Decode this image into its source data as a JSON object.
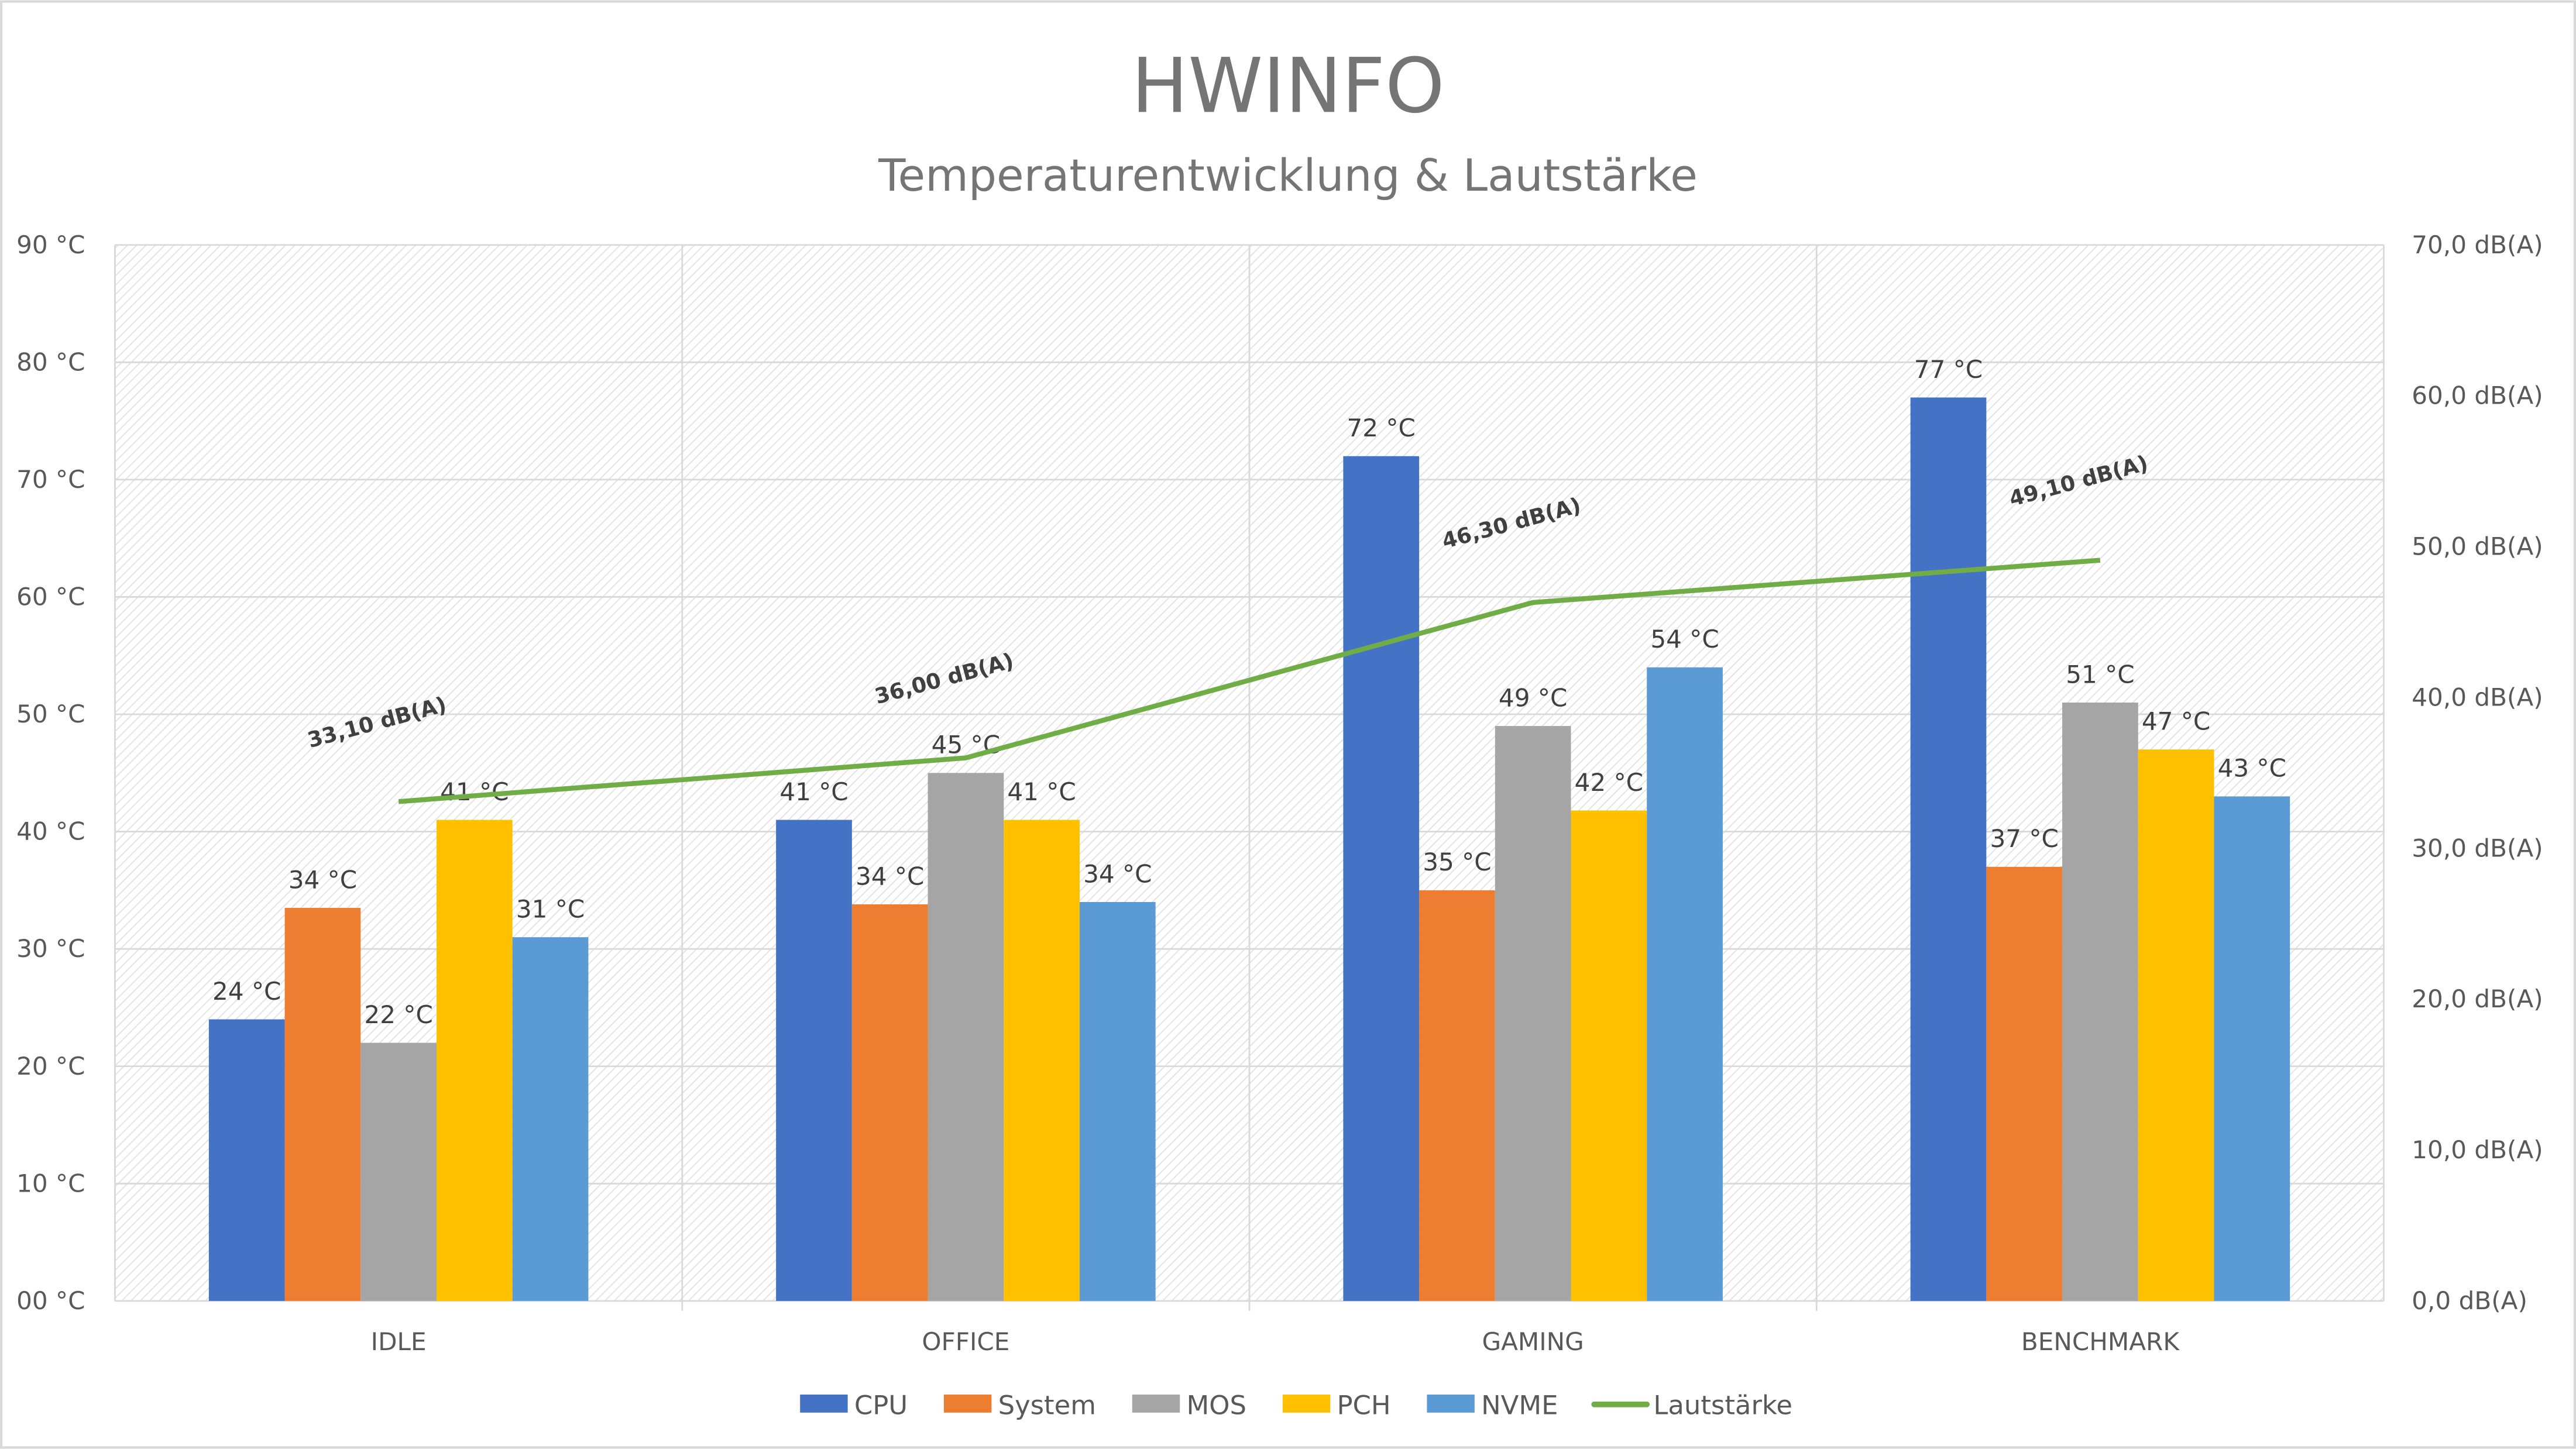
{
  "chart_data": {
    "type": "bar",
    "title": "HWINFO",
    "subtitle": "Temperaturentwicklung & Lautstärke",
    "categories": [
      "IDLE",
      "OFFICE",
      "GAMING",
      "BENCHMARK"
    ],
    "y_left": {
      "ylim": [
        0,
        90
      ],
      "ticks": [
        "00 °C",
        "10 °C",
        "20 °C",
        "30 °C",
        "40 °C",
        "50 °C",
        "60 °C",
        "70 °C",
        "80 °C",
        "90 °C"
      ]
    },
    "y_right": {
      "ylim": [
        0,
        70
      ],
      "ticks": [
        "0,0  dB(A)",
        "10,0  dB(A)",
        "20,0  dB(A)",
        "30,0  dB(A)",
        "40,0  dB(A)",
        "50,0  dB(A)",
        "60,0  dB(A)",
        "70,0  dB(A)"
      ]
    },
    "grid": true,
    "legend_position": "bottom",
    "series": [
      {
        "name": "CPU",
        "color": "#4472c4",
        "values": [
          24,
          41,
          72,
          77
        ],
        "labels": [
          "24 °C",
          "41 °C",
          "72 °C",
          "77 °C"
        ]
      },
      {
        "name": "System",
        "color": "#ed7d31",
        "values": [
          33.5,
          33.8,
          35,
          37
        ],
        "labels": [
          "34 °C",
          "34 °C",
          "35 °C",
          "37 °C"
        ]
      },
      {
        "name": "MOS",
        "color": "#a5a5a5",
        "values": [
          22,
          45,
          49,
          51
        ],
        "labels": [
          "22 °C",
          "45 °C",
          "49 °C",
          "51 °C"
        ]
      },
      {
        "name": "PCH",
        "color": "#ffc000",
        "values": [
          41,
          41,
          41.8,
          47
        ],
        "labels": [
          "41 °C",
          "41 °C",
          "42 °C",
          "47 °C"
        ]
      },
      {
        "name": "NVME",
        "color": "#5b9bd5",
        "values": [
          31,
          34,
          54,
          43
        ],
        "labels": [
          "31 °C",
          "34 °C",
          "54 °C",
          "43 °C"
        ]
      }
    ],
    "line_series": {
      "name": "Lautstärke",
      "type": "line",
      "axis": "right",
      "color": "#70ad47",
      "values": [
        33.1,
        36.0,
        46.3,
        49.1
      ],
      "labels": [
        "33,10  dB(A)",
        "36,00  dB(A)",
        "46,30  dB(A)",
        "49,10  dB(A)"
      ]
    }
  }
}
